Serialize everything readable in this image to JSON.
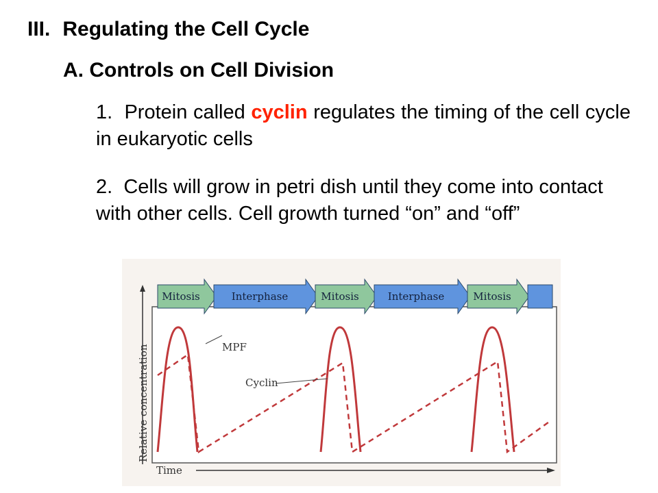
{
  "heading": {
    "number": "III.",
    "title": "Regulating the Cell Cycle"
  },
  "subheading": "A.  Controls on Cell Division",
  "point1": {
    "number": "1.",
    "before": "Protein called",
    "highlight": "cyclin",
    "after": "regulates the timing of the cell cycle in eukaryotic cells"
  },
  "point2": {
    "number": "2.",
    "text": "Cells will grow in petri dish until they come into contact with other cells.  Cell growth turned “on” and “off”"
  },
  "colors": {
    "highlight": "#ff2200",
    "mitosis": "#8fc79d",
    "interphase": "#5f94de",
    "curve": "#c0393b"
  },
  "chart_data": {
    "type": "line",
    "phases": [
      "Mitosis",
      "Interphase",
      "Mitosis",
      "Interphase",
      "Mitosis"
    ],
    "xlabel": "Time",
    "ylabel": "Relative concentration",
    "series": [
      {
        "name": "MPF",
        "style": "solid"
      },
      {
        "name": "Cyclin",
        "style": "dashed"
      }
    ]
  }
}
